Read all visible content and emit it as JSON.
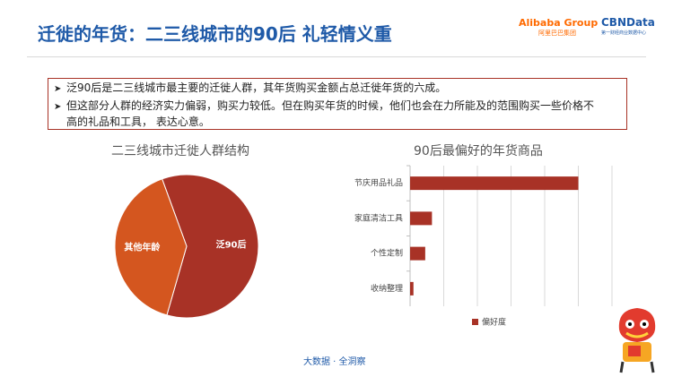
{
  "header": {
    "title": "迁徙的年货：二三线城市的90后 礼轻情义重",
    "logo_alibaba": "Alibaba Group",
    "logo_alibaba_sub": "阿里巴巴集团",
    "logo_cbn": "CBNData",
    "logo_cbn_sub": "第一财经商业数据中心"
  },
  "bullets": [
    {
      "text": "泛90后是二三线城市最主要的迁徙人群，其年货购买金额占总迁徙年货的六成。"
    },
    {
      "text": "但这部分人群的经济实力偏弱，购买力较低。但在购买年货的时候，他们也会在力所能及的范围购买一些价格不",
      "cont": "高的礼品和工具， 表达心意。"
    }
  ],
  "footer": "大数据 · 全洞察",
  "colors": {
    "title": "#1f5aa8",
    "box_border": "#a83226",
    "bar": "#a83226",
    "pie_main": "#a83226",
    "pie_other": "#d4561f"
  },
  "chart_data": [
    {
      "type": "pie",
      "title": "二三线城市迁徙人群结构",
      "labels": [
        "泛90后",
        "其他年龄"
      ],
      "values": [
        60,
        40
      ],
      "colors": [
        "#a83226",
        "#d4561f"
      ]
    },
    {
      "type": "bar",
      "orientation": "horizontal",
      "title": "90后最偏好的年货商品",
      "categories": [
        "节庆用品礼品",
        "家庭清洁工具",
        "个性定制",
        "收纳整理"
      ],
      "series": [
        {
          "name": "偏好度",
          "values": [
            100,
            13,
            9,
            2
          ]
        }
      ],
      "xlim": [
        0,
        120
      ],
      "grid": true,
      "legend": "bottom"
    }
  ]
}
